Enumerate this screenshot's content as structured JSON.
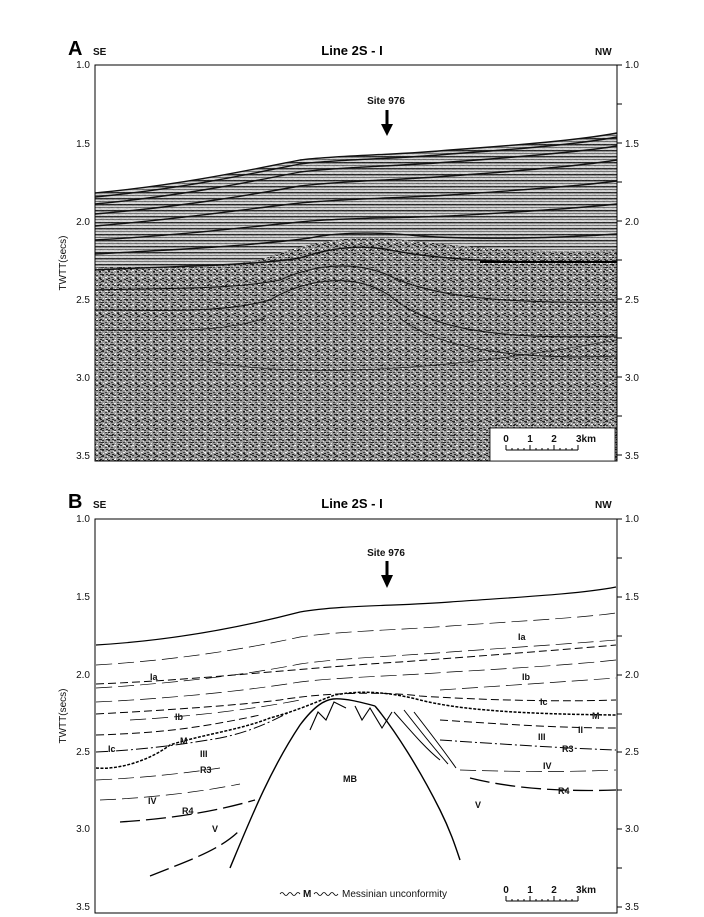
{
  "panel_a": {
    "letter": "A",
    "left_dir": "SE",
    "right_dir": "NW",
    "title": "Line 2S - I",
    "site_label": "Site 976",
    "y_label": "TWTT(secs)",
    "y_ticks": [
      "1.0",
      "1.5",
      "2.0",
      "2.5",
      "3.0",
      "3.5"
    ],
    "scale": {
      "ticks": [
        "0",
        "1",
        "2",
        "3km"
      ]
    }
  },
  "panel_b": {
    "letter": "B",
    "left_dir": "SE",
    "right_dir": "NW",
    "title": "Line 2S - I",
    "site_label": "Site 976",
    "y_label": "TWTT(secs)",
    "y_ticks": [
      "1.0",
      "1.5",
      "2.0",
      "2.5",
      "3.0",
      "3.5"
    ],
    "scale": {
      "ticks": [
        "0",
        "1",
        "2",
        "3km"
      ]
    },
    "legend": {
      "symbol": "M",
      "text": "Messinian unconformity"
    },
    "units": {
      "ia_left": "Ia",
      "ia_right": "Ia",
      "ib_left": "Ib",
      "ib_right": "Ib",
      "ic_left": "Ic",
      "ic_right": "Ic",
      "m_left": "M",
      "m_right": "M",
      "ii_right": "II",
      "iii_left": "III",
      "iii_right": "III",
      "r3_left": "R3",
      "r3_right": "R3",
      "iv_left": "IV",
      "iv_right": "IV",
      "r4_left": "R4",
      "r4_right": "R4",
      "v_left": "V",
      "v_right": "V",
      "mb": "MB"
    }
  }
}
